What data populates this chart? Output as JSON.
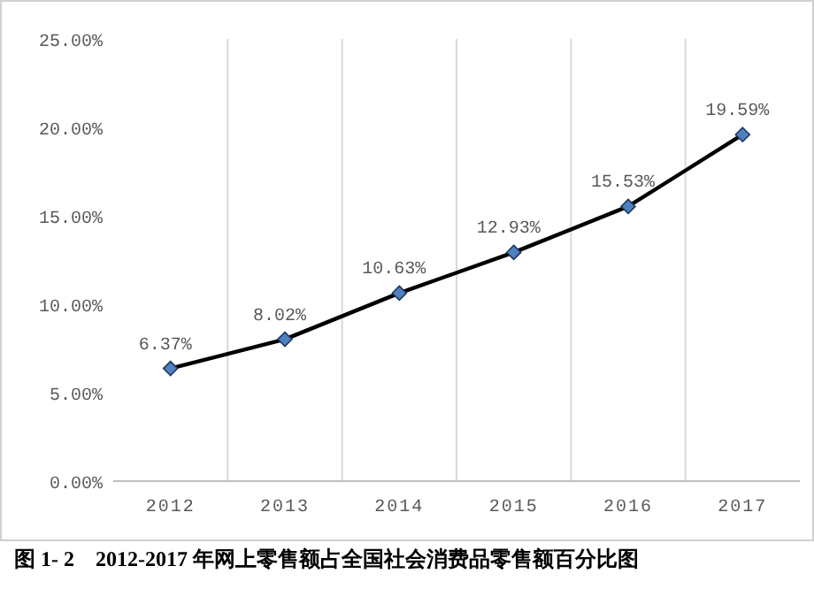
{
  "chart_data": {
    "type": "line",
    "title": "图 1- 2　2012-2017 年网上零售额占全国社会消费品零售额百分比图",
    "categories": [
      "2012",
      "2013",
      "2014",
      "2015",
      "2016",
      "2017"
    ],
    "series": [
      {
        "color": "#000000",
        "values": [
          6.37,
          8.02,
          10.63,
          12.93,
          15.53,
          19.59
        ],
        "value_labels": [
          "6.37%",
          "8.02%",
          "10.63%",
          "12.93%",
          "15.53%",
          "19.59%"
        ]
      }
    ],
    "ylim": [
      0,
      25
    ],
    "yticks": [
      {
        "value": 0,
        "label": "0.00%"
      },
      {
        "value": 5,
        "label": "5.00%"
      },
      {
        "value": 10,
        "label": "10.00%"
      },
      {
        "value": 15,
        "label": "15.00%"
      },
      {
        "value": 20,
        "label": "20.00%"
      },
      {
        "value": 25,
        "label": "25.00%"
      }
    ],
    "grid": "x",
    "marker": "diamond",
    "line_style": "solid"
  }
}
